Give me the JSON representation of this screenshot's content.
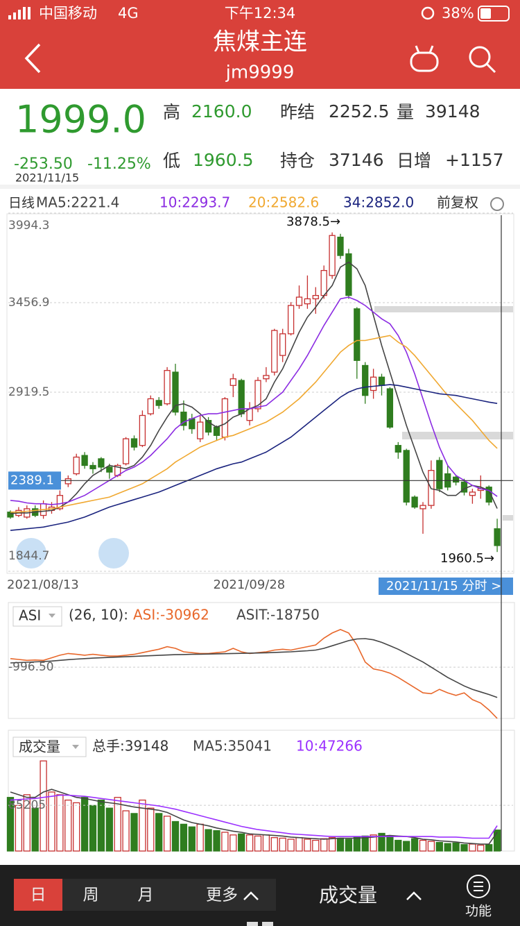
{
  "status_bar": {
    "carrier": "中国移动",
    "network": "4G",
    "time": "下午12:34",
    "battery": "38%"
  },
  "header": {
    "title": "焦煤主连",
    "subtitle": "jm9999"
  },
  "quote": {
    "price": "1999.0",
    "change": "-253.50",
    "change_pct": "-11.25%",
    "date": "2021/11/15",
    "high_label": "高",
    "high": "2160.0",
    "low_label": "低",
    "low": "1960.5",
    "prev_settle_label": "昨结",
    "prev_settle": "2252.5",
    "volume_label": "量",
    "volume": "39148",
    "open_interest_label": "持仓",
    "open_interest": "37146",
    "daily_change_label": "日增",
    "daily_change": "+1157"
  },
  "period_label": "日线",
  "adjust_label": "前复权",
  "tabs": [
    "日",
    "周",
    "月",
    "更多"
  ],
  "indicator_button": "成交量",
  "function_label": "功能",
  "chart_data": [
    {
      "type": "candlestick",
      "up_color": "#c62f2f",
      "down_color": "#2f7d1f",
      "categories": [
        "2021/08/13",
        null,
        null,
        null,
        null,
        null,
        null,
        null,
        null,
        null,
        null,
        null,
        null,
        null,
        null,
        null,
        null,
        null,
        null,
        null,
        null,
        null,
        null,
        null,
        null,
        "2021/09/28",
        null,
        null,
        null,
        null,
        null,
        null,
        null,
        null,
        null,
        null,
        null,
        null,
        null,
        null,
        null,
        null,
        null,
        null,
        null,
        null,
        null,
        null,
        null,
        null,
        null,
        null,
        null,
        null,
        null,
        null,
        null,
        null,
        null,
        null
      ],
      "cursor_label": "2021/11/15 分时 >",
      "open": [
        2200,
        2180,
        2170,
        2220,
        2180,
        2210,
        2220,
        2370,
        2430,
        2540,
        2480,
        2520,
        2470,
        2420,
        2490,
        2640,
        2600,
        2790,
        2870,
        2850,
        3040,
        2800,
        2760,
        2640,
        2750,
        2710,
        2650,
        2960,
        2990,
        2750,
        2820,
        3000,
        3040,
        3140,
        3270,
        3440,
        3450,
        3480,
        3500,
        3620,
        3850,
        3750,
        3420,
        3080,
        2930,
        3010,
        2940,
        2600,
        2570,
        2290,
        2220,
        2240,
        2510,
        2430,
        2410,
        2380,
        2300,
        2330,
        2350,
        2100
      ],
      "high": [
        2210,
        2230,
        2240,
        2240,
        2270,
        2260,
        2330,
        2420,
        2550,
        2560,
        2500,
        2530,
        2490,
        2490,
        2650,
        2660,
        2810,
        2900,
        2890,
        3070,
        3090,
        2870,
        2790,
        2780,
        2770,
        2720,
        2890,
        3030,
        3000,
        2860,
        3010,
        3070,
        3300,
        3300,
        3460,
        3560,
        3620,
        3550,
        3680,
        3878.5,
        3870,
        3780,
        3430,
        3100,
        3060,
        3030,
        2950,
        2620,
        2580,
        2300,
        2260,
        2510,
        2530,
        2480,
        2420,
        2400,
        2340,
        2420,
        2360,
        2160
      ],
      "low": [
        2160,
        2170,
        2160,
        2170,
        2160,
        2190,
        2210,
        2350,
        2420,
        2460,
        2430,
        2440,
        2400,
        2410,
        2480,
        2570,
        2590,
        2780,
        2820,
        2840,
        2780,
        2690,
        2670,
        2620,
        2660,
        2630,
        2630,
        2890,
        2770,
        2720,
        2800,
        2980,
        3020,
        3100,
        3260,
        3420,
        3420,
        3390,
        3480,
        3600,
        3720,
        3480,
        3000,
        2850,
        2880,
        2900,
        2700,
        2520,
        2240,
        2220,
        2070,
        2220,
        2320,
        2330,
        2360,
        2300,
        2250,
        2280,
        2240,
        1960.5
      ],
      "close": [
        2170,
        2210,
        2220,
        2180,
        2250,
        2230,
        2300,
        2400,
        2530,
        2480,
        2460,
        2470,
        2440,
        2480,
        2640,
        2590,
        2780,
        2880,
        2840,
        3050,
        2800,
        2720,
        2700,
        2740,
        2680,
        2660,
        2880,
        3000,
        2790,
        2820,
        2990,
        3020,
        3290,
        3270,
        3440,
        3490,
        3480,
        3500,
        3650,
        3860,
        3740,
        3500,
        3110,
        2900,
        3010,
        2960,
        2710,
        2560,
        2260,
        2230,
        2240,
        2450,
        2340,
        2350,
        2380,
        2320,
        2320,
        2340,
        2260,
        1999.0
      ],
      "series": [
        {
          "name": "MA5:2221.4",
          "color": "#444444",
          "values": [
            2190,
            2195,
            2195,
            2200,
            2205,
            2210,
            2230,
            2260,
            2310,
            2370,
            2420,
            2450,
            2480,
            2470,
            2460,
            2480,
            2530,
            2600,
            2690,
            2770,
            2840,
            2850,
            2830,
            2790,
            2740,
            2710,
            2730,
            2770,
            2790,
            2820,
            2840,
            2880,
            2980,
            3060,
            3170,
            3280,
            3370,
            3430,
            3500,
            3560,
            3670,
            3700,
            3660,
            3560,
            3380,
            3200,
            3040,
            2880,
            2720,
            2580,
            2440,
            2340,
            2330,
            2300,
            2300,
            2340,
            2360,
            2350,
            2330,
            2221.4
          ]
        },
        {
          "name": "10:2293.7",
          "color": "#8b2be2",
          "values": [
            2270,
            2265,
            2255,
            2250,
            2250,
            2245,
            2250,
            2260,
            2280,
            2300,
            2330,
            2360,
            2390,
            2420,
            2450,
            2470,
            2500,
            2540,
            2590,
            2640,
            2700,
            2740,
            2760,
            2780,
            2790,
            2790,
            2800,
            2810,
            2820,
            2820,
            2830,
            2840,
            2880,
            2920,
            2990,
            3060,
            3140,
            3230,
            3320,
            3400,
            3480,
            3490,
            3470,
            3440,
            3400,
            3360,
            3330,
            3260,
            3160,
            3030,
            2880,
            2730,
            2590,
            2480,
            2420,
            2390,
            2360,
            2340,
            2330,
            2293.7
          ]
        },
        {
          "name": "20:2582.6",
          "color": "#f0a830",
          "values": [
            2200,
            2200,
            2205,
            2210,
            2215,
            2220,
            2230,
            2240,
            2250,
            2260,
            2270,
            2280,
            2290,
            2310,
            2330,
            2350,
            2370,
            2400,
            2430,
            2460,
            2500,
            2530,
            2560,
            2590,
            2610,
            2630,
            2650,
            2660,
            2680,
            2700,
            2720,
            2740,
            2770,
            2800,
            2840,
            2880,
            2930,
            2980,
            3040,
            3100,
            3160,
            3200,
            3230,
            3230,
            3240,
            3250,
            3260,
            3220,
            3190,
            3140,
            3080,
            3020,
            2960,
            2900,
            2850,
            2800,
            2750,
            2690,
            2630,
            2582.6
          ]
        },
        {
          "name": "34:2852.0",
          "color": "#1a237e",
          "values": [
            2090,
            2095,
            2100,
            2105,
            2110,
            2120,
            2130,
            2140,
            2155,
            2170,
            2190,
            2210,
            2230,
            2245,
            2260,
            2275,
            2290,
            2305,
            2320,
            2340,
            2360,
            2380,
            2400,
            2420,
            2440,
            2460,
            2475,
            2490,
            2500,
            2520,
            2540,
            2560,
            2590,
            2620,
            2650,
            2690,
            2730,
            2770,
            2810,
            2850,
            2890,
            2920,
            2940,
            2950,
            2955,
            2960,
            2965,
            2960,
            2950,
            2940,
            2930,
            2920,
            2910,
            2905,
            2900,
            2890,
            2880,
            2870,
            2860,
            2852.0
          ]
        }
      ],
      "ylim": [
        1844.7,
        3994.3
      ],
      "yticks": [
        3994.3,
        3456.9,
        2919.5,
        1844.7
      ],
      "grid": true,
      "crosshair_value": 2389.1,
      "annotations": [
        {
          "value": 3878.5,
          "label": "3878.5→"
        },
        {
          "value": 1960.5,
          "label": "1960.5→"
        }
      ]
    },
    {
      "type": "line",
      "indicator": "ASI",
      "params": "(26, 10):",
      "series": [
        {
          "name": "ASI:-30962",
          "color": "#e8672a",
          "values": [
            4000,
            3500,
            3000,
            3200,
            3000,
            4500,
            6000,
            7000,
            6500,
            6000,
            6500,
            6000,
            5500,
            5500,
            6000,
            6500,
            7500,
            8500,
            9500,
            11000,
            10000,
            8000,
            7500,
            7000,
            7000,
            7500,
            8000,
            10000,
            8000,
            7000,
            7500,
            8000,
            9000,
            9500,
            9000,
            10000,
            11000,
            12000,
            16000,
            19000,
            21000,
            19000,
            12000,
            2000,
            -2000,
            -3000,
            -4500,
            -7000,
            -10000,
            -13000,
            -16000,
            -16500,
            -14000,
            -16000,
            -17500,
            -16000,
            -20000,
            -22000,
            -26000,
            -30962
          ]
        },
        {
          "name": "ASIT:-18750",
          "color": "#444444",
          "values": [
            1500,
            1700,
            1900,
            2100,
            2300,
            2600,
            3000,
            3400,
            3700,
            4000,
            4300,
            4500,
            4700,
            4900,
            5100,
            5300,
            5500,
            5700,
            5900,
            6100,
            6300,
            6400,
            6500,
            6600,
            6700,
            6800,
            6900,
            7000,
            7100,
            7200,
            7300,
            7400,
            7600,
            7800,
            8000,
            8300,
            8600,
            9000,
            10000,
            11500,
            13000,
            14500,
            15500,
            15700,
            15000,
            13500,
            11500,
            9500,
            7000,
            4500,
            2000,
            -1000,
            -4000,
            -7000,
            -9500,
            -12000,
            -14000,
            -15500,
            -17000,
            -18750
          ]
        }
      ],
      "ylim": [
        -31000,
        36000
      ],
      "yticks": [
        {
          "value": -996.5,
          "label": "-996.50"
        }
      ],
      "grid": true
    },
    {
      "type": "bar",
      "indicator": "成交量",
      "total_label": "总手:39148",
      "values": [
        100000,
        85000,
        105000,
        80000,
        168000,
        110000,
        105000,
        95000,
        90000,
        100000,
        85000,
        95000,
        80000,
        100000,
        75000,
        70000,
        95000,
        80000,
        70000,
        65000,
        55000,
        50000,
        45000,
        50000,
        40000,
        38000,
        35000,
        30000,
        32000,
        30000,
        28000,
        30000,
        25000,
        24000,
        22000,
        25000,
        22000,
        20000,
        23000,
        25000,
        24000,
        22000,
        26000,
        28000,
        30000,
        33000,
        28000,
        20000,
        18000,
        23000,
        20000,
        18000,
        16000,
        14000,
        15000,
        12000,
        13000,
        11000,
        12000,
        39148
      ],
      "series": [
        {
          "name": "MA5:35041",
          "color": "#444444",
          "values": [
            110000,
            105000,
            100000,
            100000,
            110000,
            115000,
            110000,
            105000,
            100000,
            98000,
            95000,
            92000,
            90000,
            88000,
            85000,
            82000,
            80000,
            78000,
            76000,
            72000,
            65000,
            58000,
            53000,
            50000,
            47000,
            43000,
            40000,
            37000,
            35000,
            32000,
            31000,
            30000,
            29000,
            28000,
            26000,
            25000,
            24000,
            23000,
            22000,
            23000,
            24000,
            24000,
            24000,
            25000,
            26000,
            28000,
            29000,
            28000,
            27000,
            25000,
            22000,
            21000,
            19000,
            18000,
            17000,
            15000,
            14000,
            13000,
            13000,
            35041
          ]
        },
        {
          "name": "10:47266",
          "color": "#9b30ff",
          "values": [
            95000,
            96000,
            97000,
            98000,
            100000,
            102000,
            104000,
            104000,
            103000,
            102000,
            100000,
            98000,
            96000,
            94000,
            92000,
            90000,
            88000,
            86000,
            84000,
            81000,
            78000,
            74000,
            70000,
            66000,
            62000,
            58000,
            54000,
            50000,
            46000,
            43000,
            40000,
            38000,
            36000,
            34000,
            32000,
            31000,
            30000,
            29000,
            28000,
            27000,
            27000,
            27000,
            27000,
            27000,
            27000,
            27000,
            27000,
            27000,
            27000,
            27000,
            27000,
            27000,
            26000,
            26000,
            26000,
            25000,
            24000,
            24000,
            24000,
            47266
          ]
        }
      ],
      "ylim": [
        0,
        220000
      ],
      "yticks": [
        85205
      ],
      "grid": true
    }
  ]
}
